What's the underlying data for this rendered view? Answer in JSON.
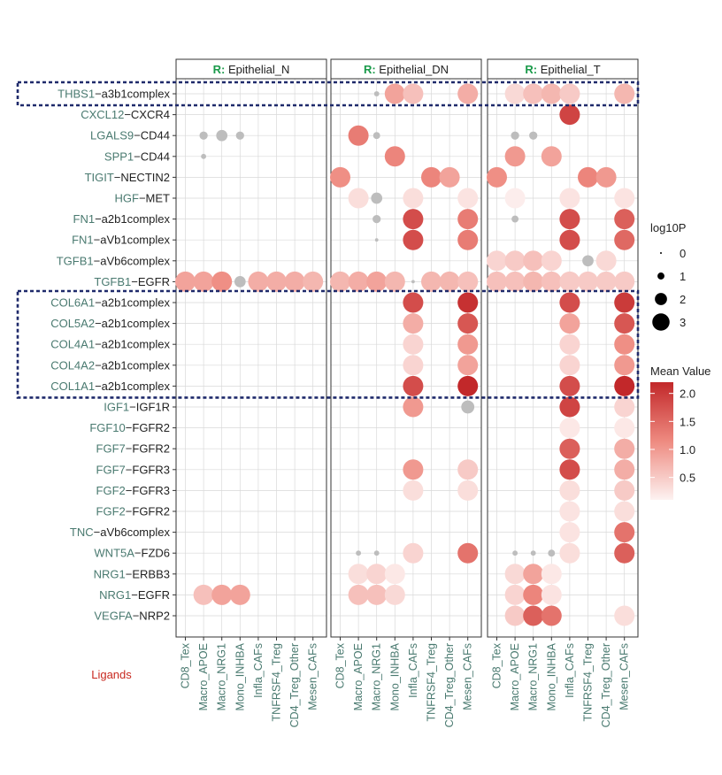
{
  "chart_data": {
    "type": "dotplot",
    "facet_prefix": "R:",
    "facets": [
      "Epithelial_N",
      "Epithelial_DN",
      "Epithelial_T"
    ],
    "x_categories": [
      "CD8_Tex",
      "Macro_APOE",
      "Macro_NRG1",
      "Mono_INHBA",
      "Infla_CAFs",
      "TNFRSF4_Treg",
      "CD4_Treg_Other",
      "Mesen_CAFs"
    ],
    "rows": [
      {
        "ligand": "THBS1",
        "receptor": "a3b1complex"
      },
      {
        "ligand": "CXCL12",
        "receptor": "CXCR4"
      },
      {
        "ligand": "LGALS9",
        "receptor": "CD44"
      },
      {
        "ligand": "SPP1",
        "receptor": "CD44"
      },
      {
        "ligand": "TIGIT",
        "receptor": "NECTIN2"
      },
      {
        "ligand": "HGF",
        "receptor": "MET"
      },
      {
        "ligand": "FN1",
        "receptor": "a2b1complex"
      },
      {
        "ligand": "FN1",
        "receptor": "aVb1complex"
      },
      {
        "ligand": "TGFB1",
        "receptor": "aVb6complex"
      },
      {
        "ligand": "TGFB1",
        "receptor": "EGFR"
      },
      {
        "ligand": "COL6A1",
        "receptor": "a2b1complex"
      },
      {
        "ligand": "COL5A2",
        "receptor": "a2b1complex"
      },
      {
        "ligand": "COL4A1",
        "receptor": "a2b1complex"
      },
      {
        "ligand": "COL4A2",
        "receptor": "a2b1complex"
      },
      {
        "ligand": "COL1A1",
        "receptor": "a2b1complex"
      },
      {
        "ligand": "IGF1",
        "receptor": "IGF1R"
      },
      {
        "ligand": "FGF10",
        "receptor": "FGFR2"
      },
      {
        "ligand": "FGF7",
        "receptor": "FGFR2"
      },
      {
        "ligand": "FGF7",
        "receptor": "FGFR3"
      },
      {
        "ligand": "FGF2",
        "receptor": "FGFR3"
      },
      {
        "ligand": "FGF2",
        "receptor": "FGFR2"
      },
      {
        "ligand": "TNC",
        "receptor": "aVb6complex"
      },
      {
        "ligand": "WNT5A",
        "receptor": "FZD6"
      },
      {
        "ligand": "NRG1",
        "receptor": "ERBB3"
      },
      {
        "ligand": "NRG1",
        "receptor": "EGFR"
      },
      {
        "ligand": "VEGFA",
        "receptor": "NRP2"
      }
    ],
    "points_note": "each point: [facet_index, row_index, x_index, log10P, mean_value]; mean_value null = not significant (grey)",
    "points": [
      [
        0,
        2,
        1,
        1.0,
        null
      ],
      [
        0,
        2,
        2,
        1.5,
        null
      ],
      [
        0,
        2,
        3,
        1.0,
        null
      ],
      [
        0,
        3,
        1,
        0.5,
        null
      ],
      [
        0,
        9,
        0,
        3.0,
        0.9
      ],
      [
        0,
        9,
        1,
        3.0,
        0.9
      ],
      [
        0,
        9,
        2,
        3.0,
        1.1
      ],
      [
        0,
        9,
        3,
        1.5,
        null
      ],
      [
        0,
        9,
        4,
        3.0,
        0.8
      ],
      [
        0,
        9,
        5,
        3.0,
        0.8
      ],
      [
        0,
        9,
        6,
        3.0,
        0.8
      ],
      [
        0,
        9,
        7,
        3.0,
        0.7
      ],
      [
        0,
        24,
        1,
        3.0,
        0.6
      ],
      [
        0,
        24,
        2,
        3.0,
        0.9
      ],
      [
        0,
        24,
        3,
        3.0,
        0.9
      ],
      [
        1,
        0,
        2,
        0.5,
        null
      ],
      [
        1,
        0,
        3,
        3.0,
        0.9
      ],
      [
        1,
        0,
        4,
        3.0,
        0.6
      ],
      [
        1,
        0,
        7,
        3.0,
        0.8
      ],
      [
        1,
        2,
        1,
        3.0,
        1.3
      ],
      [
        1,
        2,
        2,
        0.8,
        null
      ],
      [
        1,
        3,
        3,
        3.0,
        1.2
      ],
      [
        1,
        4,
        0,
        3.0,
        1.1
      ],
      [
        1,
        4,
        5,
        3.0,
        1.2
      ],
      [
        1,
        4,
        6,
        3.0,
        0.9
      ],
      [
        1,
        5,
        1,
        3.0,
        0.3
      ],
      [
        1,
        5,
        2,
        1.5,
        null
      ],
      [
        1,
        5,
        4,
        3.0,
        0.3
      ],
      [
        1,
        5,
        7,
        3.0,
        0.25
      ],
      [
        1,
        6,
        2,
        1.0,
        null
      ],
      [
        1,
        6,
        4,
        3.0,
        1.8
      ],
      [
        1,
        6,
        7,
        3.0,
        1.3
      ],
      [
        1,
        7,
        2,
        0.2,
        null
      ],
      [
        1,
        7,
        4,
        3.0,
        1.8
      ],
      [
        1,
        7,
        7,
        3.0,
        1.3
      ],
      [
        1,
        9,
        0,
        3.0,
        0.7
      ],
      [
        1,
        9,
        1,
        3.0,
        0.8
      ],
      [
        1,
        9,
        2,
        3.0,
        0.9
      ],
      [
        1,
        9,
        3,
        3.0,
        0.7
      ],
      [
        1,
        9,
        4,
        0.2,
        null
      ],
      [
        1,
        9,
        5,
        3.0,
        0.7
      ],
      [
        1,
        9,
        6,
        3.0,
        0.7
      ],
      [
        1,
        9,
        7,
        3.0,
        0.6
      ],
      [
        1,
        10,
        4,
        3.0,
        1.8
      ],
      [
        1,
        10,
        7,
        3.0,
        2.1
      ],
      [
        1,
        11,
        4,
        3.0,
        0.8
      ],
      [
        1,
        11,
        7,
        3.0,
        1.7
      ],
      [
        1,
        12,
        4,
        3.0,
        0.4
      ],
      [
        1,
        12,
        7,
        3.0,
        1.0
      ],
      [
        1,
        13,
        4,
        3.0,
        0.4
      ],
      [
        1,
        13,
        7,
        3.0,
        0.9
      ],
      [
        1,
        14,
        4,
        3.0,
        1.8
      ],
      [
        1,
        14,
        7,
        3.0,
        2.2
      ],
      [
        1,
        15,
        4,
        3.0,
        1.0
      ],
      [
        1,
        15,
        7,
        1.8,
        null
      ],
      [
        1,
        18,
        4,
        3.0,
        1.0
      ],
      [
        1,
        18,
        7,
        3.0,
        0.5
      ],
      [
        1,
        19,
        4,
        3.0,
        0.3
      ],
      [
        1,
        19,
        7,
        3.0,
        0.3
      ],
      [
        1,
        22,
        1,
        0.5,
        null
      ],
      [
        1,
        22,
        2,
        0.5,
        null
      ],
      [
        1,
        22,
        4,
        3.0,
        0.4
      ],
      [
        1,
        22,
        7,
        3.0,
        1.4
      ],
      [
        1,
        23,
        1,
        3.0,
        0.3
      ],
      [
        1,
        23,
        2,
        3.0,
        0.4
      ],
      [
        1,
        23,
        3,
        3.0,
        0.2
      ],
      [
        1,
        24,
        1,
        3.0,
        0.6
      ],
      [
        1,
        24,
        2,
        3.0,
        0.6
      ],
      [
        1,
        24,
        3,
        3.0,
        0.35
      ],
      [
        2,
        0,
        1,
        3.0,
        0.35
      ],
      [
        2,
        0,
        2,
        3.0,
        0.6
      ],
      [
        2,
        0,
        3,
        3.0,
        0.7
      ],
      [
        2,
        0,
        4,
        3.0,
        0.5
      ],
      [
        2,
        0,
        7,
        3.0,
        0.7
      ],
      [
        2,
        1,
        4,
        3.0,
        1.9
      ],
      [
        2,
        2,
        1,
        1.0,
        null
      ],
      [
        2,
        2,
        2,
        1.0,
        null
      ],
      [
        2,
        3,
        1,
        3.0,
        1.0
      ],
      [
        2,
        3,
        3,
        3.0,
        0.9
      ],
      [
        2,
        4,
        0,
        3.0,
        1.1
      ],
      [
        2,
        4,
        5,
        3.0,
        1.2
      ],
      [
        2,
        4,
        6,
        3.0,
        1.0
      ],
      [
        2,
        5,
        1,
        3.0,
        0.15
      ],
      [
        2,
        5,
        4,
        3.0,
        0.25
      ],
      [
        2,
        5,
        7,
        3.0,
        0.25
      ],
      [
        2,
        6,
        1,
        0.8,
        null
      ],
      [
        2,
        6,
        4,
        3.0,
        1.8
      ],
      [
        2,
        6,
        7,
        3.0,
        1.6
      ],
      [
        2,
        7,
        4,
        3.0,
        1.8
      ],
      [
        2,
        7,
        7,
        3.0,
        1.5
      ],
      [
        2,
        8,
        0,
        3.0,
        0.4
      ],
      [
        2,
        8,
        1,
        3.0,
        0.5
      ],
      [
        2,
        8,
        2,
        3.0,
        0.6
      ],
      [
        2,
        8,
        3,
        3.0,
        0.4
      ],
      [
        2,
        8,
        5,
        1.5,
        null
      ],
      [
        2,
        8,
        6,
        3.0,
        0.35
      ],
      [
        2,
        9,
        0,
        3.0,
        0.6
      ],
      [
        2,
        9,
        1,
        3.0,
        0.6
      ],
      [
        2,
        9,
        2,
        3.0,
        0.7
      ],
      [
        2,
        9,
        3,
        3.0,
        0.6
      ],
      [
        2,
        9,
        4,
        3.0,
        0.5
      ],
      [
        2,
        9,
        5,
        3.0,
        0.5
      ],
      [
        2,
        9,
        6,
        3.0,
        0.5
      ],
      [
        2,
        9,
        7,
        3.0,
        0.5
      ],
      [
        2,
        10,
        4,
        3.0,
        1.8
      ],
      [
        2,
        10,
        7,
        3.0,
        2.0
      ],
      [
        2,
        11,
        4,
        3.0,
        0.9
      ],
      [
        2,
        11,
        7,
        3.0,
        1.7
      ],
      [
        2,
        12,
        4,
        3.0,
        0.4
      ],
      [
        2,
        12,
        7,
        3.0,
        1.1
      ],
      [
        2,
        13,
        4,
        3.0,
        0.4
      ],
      [
        2,
        13,
        7,
        3.0,
        1.0
      ],
      [
        2,
        14,
        4,
        3.0,
        1.8
      ],
      [
        2,
        14,
        7,
        3.0,
        2.2
      ],
      [
        2,
        15,
        4,
        3.0,
        1.9
      ],
      [
        2,
        15,
        7,
        3.0,
        0.4
      ],
      [
        2,
        16,
        4,
        3.0,
        0.2
      ],
      [
        2,
        16,
        7,
        3.0,
        0.2
      ],
      [
        2,
        17,
        4,
        3.0,
        1.6
      ],
      [
        2,
        17,
        7,
        3.0,
        0.8
      ],
      [
        2,
        18,
        4,
        3.0,
        1.8
      ],
      [
        2,
        18,
        7,
        3.0,
        0.8
      ],
      [
        2,
        19,
        4,
        3.0,
        0.3
      ],
      [
        2,
        19,
        7,
        3.0,
        0.5
      ],
      [
        2,
        20,
        4,
        3.0,
        0.25
      ],
      [
        2,
        20,
        7,
        3.0,
        0.3
      ],
      [
        2,
        21,
        4,
        3.0,
        0.25
      ],
      [
        2,
        21,
        7,
        3.0,
        1.4
      ],
      [
        2,
        22,
        1,
        0.5,
        null
      ],
      [
        2,
        22,
        2,
        0.5,
        null
      ],
      [
        2,
        22,
        3,
        0.8,
        null
      ],
      [
        2,
        22,
        4,
        3.0,
        0.3
      ],
      [
        2,
        22,
        7,
        3.0,
        1.6
      ],
      [
        2,
        23,
        1,
        3.0,
        0.35
      ],
      [
        2,
        23,
        2,
        3.0,
        0.9
      ],
      [
        2,
        23,
        3,
        3.0,
        0.2
      ],
      [
        2,
        24,
        1,
        3.0,
        0.4
      ],
      [
        2,
        24,
        2,
        3.0,
        1.2
      ],
      [
        2,
        24,
        3,
        3.0,
        0.25
      ],
      [
        2,
        25,
        1,
        3.0,
        0.5
      ],
      [
        2,
        25,
        2,
        3.0,
        1.6
      ],
      [
        2,
        25,
        3,
        3.0,
        1.4
      ],
      [
        2,
        25,
        7,
        3.0,
        0.3
      ]
    ],
    "highlight_groups": [
      {
        "rows": [
          0,
          0
        ]
      },
      {
        "rows": [
          10,
          14
        ]
      }
    ],
    "ligands_label": "Ligands",
    "legend_size": {
      "title": "log10P",
      "levels": [
        0,
        1,
        2,
        3
      ]
    },
    "legend_color": {
      "title": "Mean Value",
      "ticks": [
        0.5,
        1.0,
        1.5,
        2.0
      ],
      "range": [
        0.1,
        2.2
      ],
      "low": "#fdf2f1",
      "mid": "#ee8a80",
      "high": "#c2282a"
    },
    "colors": {
      "ligand_text": "#4a7a70",
      "grey_point": "#bdbdbd",
      "facet_prefix": "#1a9a4a",
      "highlight_border": "#1f2a6b",
      "ligands_label": "#c8281f",
      "grid": "#d9d9d9"
    }
  }
}
